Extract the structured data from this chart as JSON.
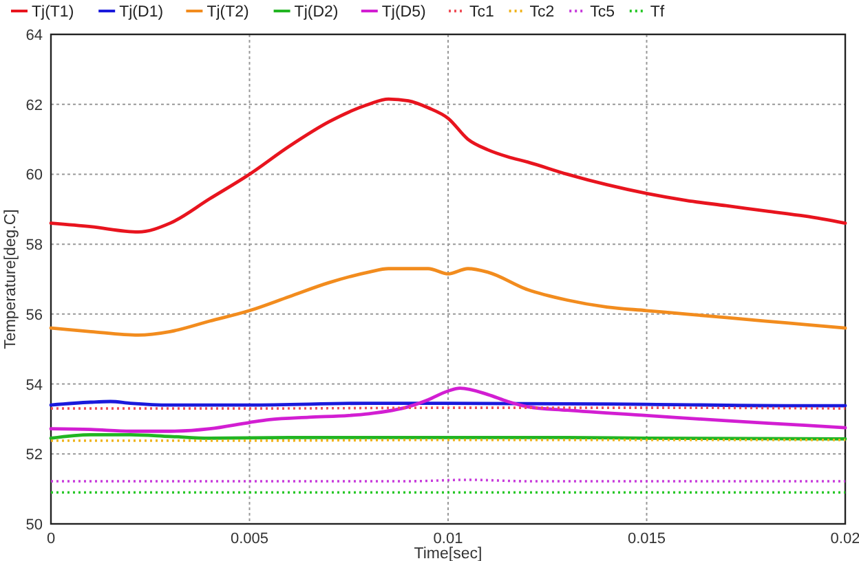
{
  "chart_data": {
    "type": "line",
    "xlabel": "Time[sec]",
    "ylabel": "Temperature[deg.C]",
    "xlim": [
      0,
      0.02
    ],
    "ylim": [
      50,
      64
    ],
    "xticks": [
      0,
      0.005,
      0.01,
      0.015,
      0.02
    ],
    "yticks": [
      50,
      52,
      54,
      56,
      58,
      60,
      62,
      64
    ],
    "grid": true,
    "legend": "top left",
    "marker": "none",
    "series": [
      {
        "name": "Tj(T1)",
        "color": "#e8141e",
        "line_style": "solid",
        "x": [
          0,
          0.001,
          0.0022,
          0.003,
          0.004,
          0.005,
          0.006,
          0.007,
          0.008,
          0.0085,
          0.009,
          0.0095,
          0.01,
          0.0105,
          0.011,
          0.0115,
          0.012,
          0.013,
          0.014,
          0.015,
          0.016,
          0.017,
          0.018,
          0.019,
          0.02
        ],
        "values": [
          58.6,
          58.5,
          58.35,
          58.6,
          59.3,
          60.0,
          60.8,
          61.5,
          62.0,
          62.15,
          62.1,
          61.9,
          61.6,
          61.0,
          60.7,
          60.5,
          60.35,
          60.0,
          59.7,
          59.45,
          59.25,
          59.1,
          58.95,
          58.8,
          58.6
        ]
      },
      {
        "name": "Tj(D1)",
        "color": "#1a1adc",
        "line_style": "solid",
        "x": [
          0,
          0.001,
          0.0015,
          0.002,
          0.003,
          0.005,
          0.008,
          0.01,
          0.015,
          0.0185,
          0.02
        ],
        "values": [
          53.4,
          53.48,
          53.5,
          53.45,
          53.4,
          53.4,
          53.45,
          53.45,
          53.42,
          53.38,
          53.38
        ]
      },
      {
        "name": "Tj(T2)",
        "color": "#f28c1e",
        "line_style": "solid",
        "x": [
          0,
          0.001,
          0.0022,
          0.003,
          0.004,
          0.005,
          0.006,
          0.007,
          0.008,
          0.0085,
          0.009,
          0.0095,
          0.01,
          0.0105,
          0.011,
          0.012,
          0.013,
          0.014,
          0.015,
          0.016,
          0.017,
          0.018,
          0.019,
          0.02
        ],
        "values": [
          55.6,
          55.5,
          55.4,
          55.5,
          55.8,
          56.1,
          56.5,
          56.9,
          57.2,
          57.3,
          57.3,
          57.3,
          57.15,
          57.3,
          57.2,
          56.7,
          56.4,
          56.2,
          56.1,
          56.0,
          55.9,
          55.8,
          55.7,
          55.6
        ]
      },
      {
        "name": "Tj(D2)",
        "color": "#22b522",
        "line_style": "solid",
        "x": [
          0,
          0.001,
          0.002,
          0.003,
          0.004,
          0.006,
          0.01,
          0.013,
          0.015,
          0.02
        ],
        "values": [
          52.45,
          52.55,
          52.55,
          52.5,
          52.45,
          52.47,
          52.47,
          52.47,
          52.45,
          52.43
        ]
      },
      {
        "name": "Tj(D5)",
        "color": "#d21ed2",
        "line_style": "solid",
        "x": [
          0,
          0.001,
          0.002,
          0.003,
          0.004,
          0.005,
          0.0055,
          0.0065,
          0.0075,
          0.008,
          0.009,
          0.0095,
          0.01,
          0.0103,
          0.011,
          0.0115,
          0.012,
          0.013,
          0.015,
          0.017,
          0.019,
          0.02
        ],
        "values": [
          52.72,
          52.7,
          52.65,
          52.65,
          52.72,
          52.9,
          52.98,
          53.05,
          53.1,
          53.15,
          53.35,
          53.55,
          53.8,
          53.88,
          53.7,
          53.5,
          53.35,
          53.25,
          53.1,
          52.95,
          52.82,
          52.75
        ]
      },
      {
        "name": "Tc1",
        "color": "#f0505a",
        "line_style": "dotted",
        "x": [
          0,
          0.005,
          0.01,
          0.015,
          0.02
        ],
        "values": [
          53.3,
          53.3,
          53.32,
          53.32,
          53.3
        ]
      },
      {
        "name": "Tc2",
        "color": "#f0b41e",
        "line_style": "dotted",
        "x": [
          0,
          0.005,
          0.01,
          0.015,
          0.02
        ],
        "values": [
          52.38,
          52.38,
          52.4,
          52.4,
          52.4
        ]
      },
      {
        "name": "Tc5",
        "color": "#c83cdc",
        "line_style": "dotted",
        "x": [
          0,
          0.009,
          0.0105,
          0.012,
          0.02
        ],
        "values": [
          51.22,
          51.22,
          51.26,
          51.22,
          51.22
        ]
      },
      {
        "name": "Tf",
        "color": "#28c828",
        "line_style": "dotted",
        "x": [
          0,
          0.01,
          0.02
        ],
        "values": [
          50.9,
          50.9,
          50.9
        ]
      }
    ]
  }
}
